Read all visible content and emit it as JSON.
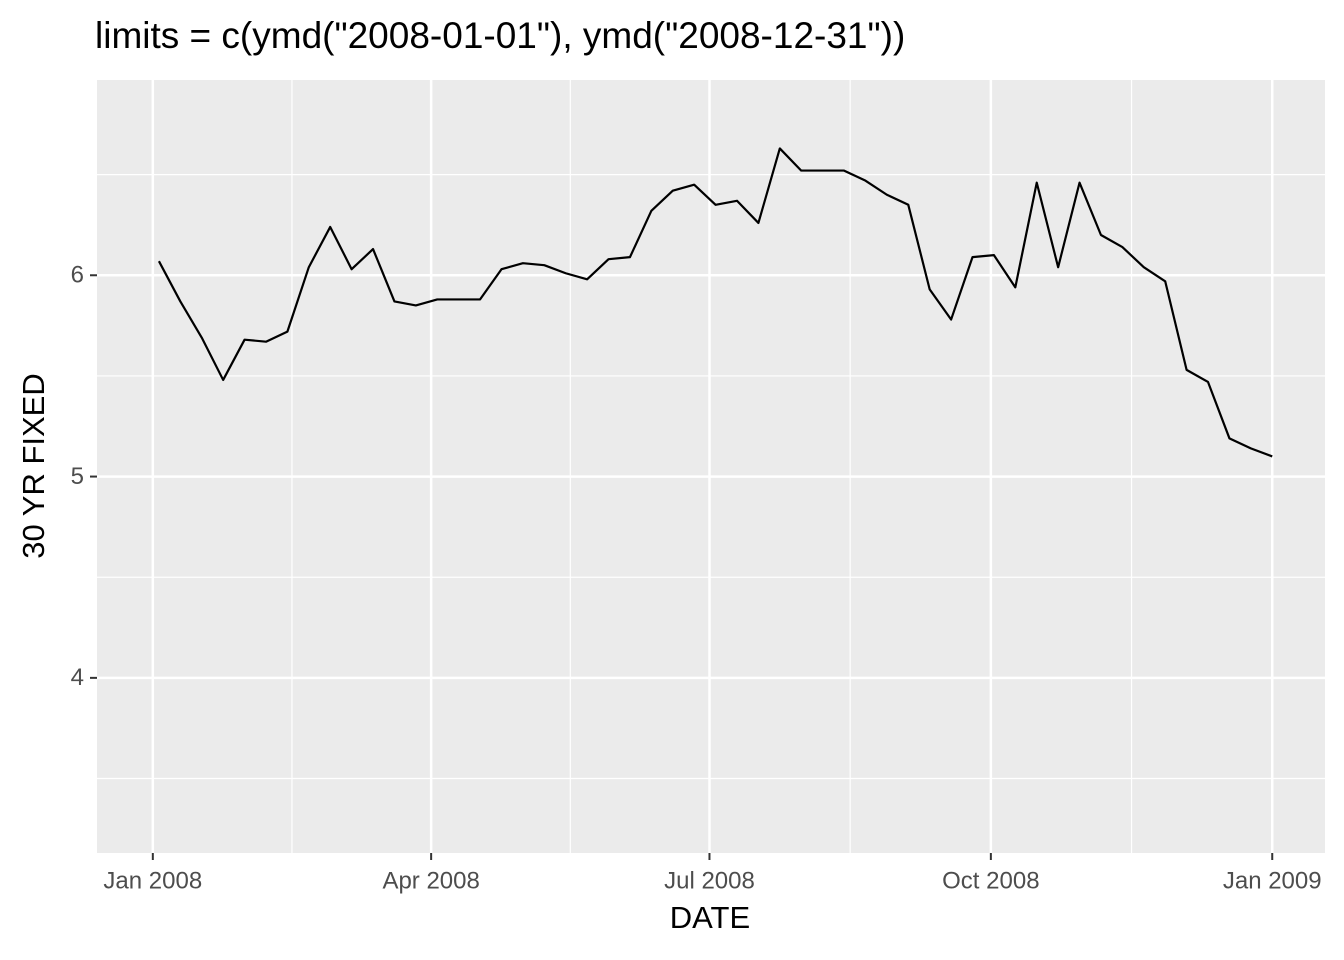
{
  "chart_data": {
    "type": "line",
    "title": "limits = c(ymd(\"2008-01-01\"), ymd(\"2008-12-31\"))",
    "x_label": "DATE",
    "y_label": "30 YR FIXED",
    "xlim": [
      -18.25,
      383.25
    ],
    "xticks": [
      {
        "value": 0,
        "label": "Jan 2008"
      },
      {
        "value": 91,
        "label": "Apr 2008"
      },
      {
        "value": 182,
        "label": "Jul 2008"
      },
      {
        "value": 274,
        "label": "Oct 2008"
      },
      {
        "value": 366,
        "label": "Jan 2009"
      }
    ],
    "x_minor_ticks": [
      45.5,
      136.5,
      228,
      320
    ],
    "ylim": [
      3.13,
      6.97
    ],
    "yticks": [
      4,
      5,
      6
    ],
    "y_minor_ticks": [
      3.5,
      4.5,
      5.5,
      6.5
    ],
    "grid": true,
    "x": [
      2,
      9,
      16,
      23,
      30,
      37,
      44,
      51,
      58,
      65,
      72,
      79,
      86,
      93,
      100,
      107,
      114,
      121,
      128,
      135,
      142,
      149,
      156,
      163,
      170,
      177,
      184,
      191,
      198,
      205,
      212,
      219,
      226,
      233,
      240,
      247,
      254,
      261,
      268,
      275,
      282,
      289,
      296,
      303,
      310,
      317,
      324,
      331,
      338,
      345,
      352,
      359,
      366
    ],
    "series": [
      {
        "name": "30 YR FIXED",
        "color": "#000000",
        "values": [
          6.07,
          5.87,
          5.69,
          5.48,
          5.68,
          5.67,
          5.72,
          6.04,
          6.24,
          6.03,
          6.13,
          5.87,
          5.85,
          5.88,
          5.88,
          5.88,
          6.03,
          6.06,
          6.05,
          6.01,
          5.98,
          6.08,
          6.09,
          6.32,
          6.42,
          6.45,
          6.35,
          6.37,
          6.26,
          6.63,
          6.52,
          6.52,
          6.52,
          6.47,
          6.4,
          6.35,
          5.93,
          5.78,
          6.09,
          6.1,
          5.94,
          6.46,
          6.04,
          6.46,
          6.2,
          6.14,
          6.04,
          5.97,
          5.53,
          5.47,
          5.19,
          5.14,
          5.1
        ]
      }
    ]
  }
}
